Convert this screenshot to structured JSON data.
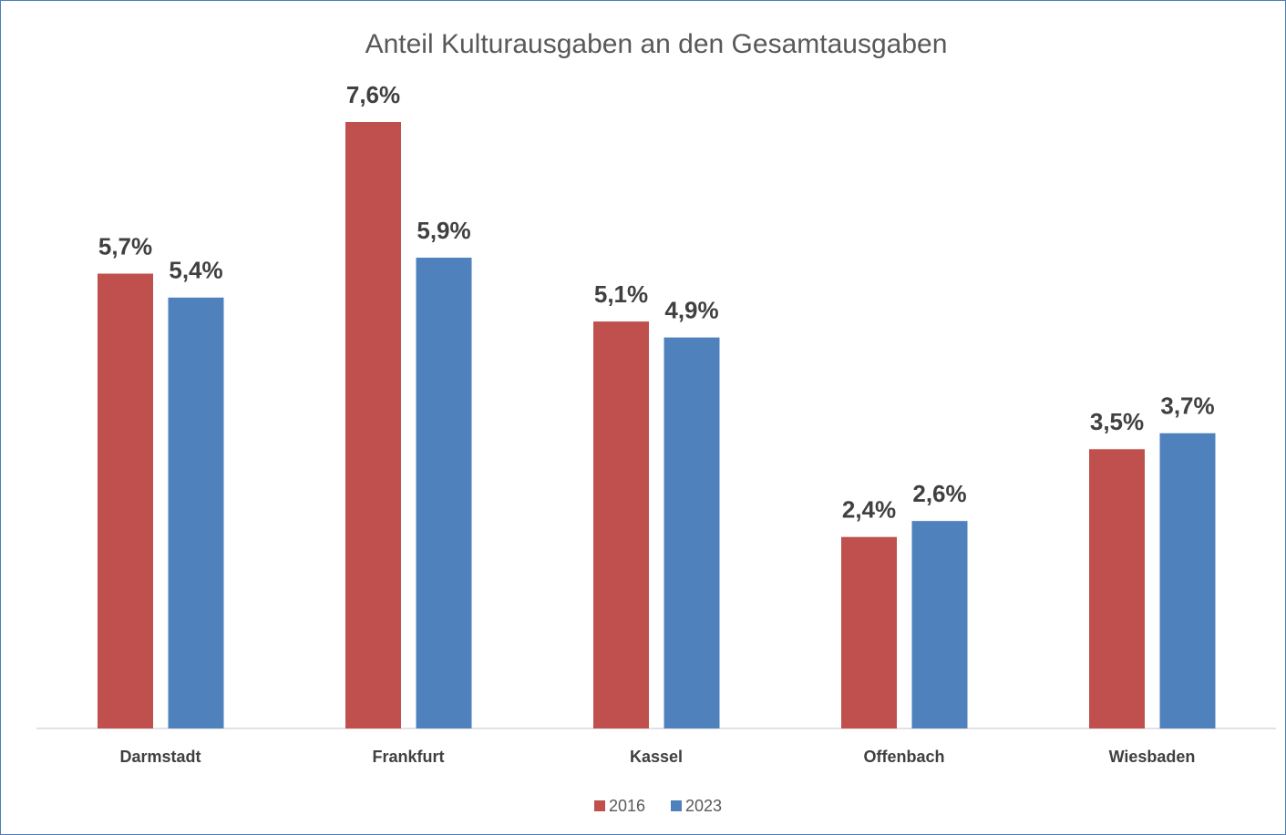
{
  "chart_data": {
    "type": "bar",
    "title": "Anteil Kulturausgaben an den Gesamtausgaben",
    "categories": [
      "Darmstadt",
      "Frankfurt",
      "Kassel",
      "Offenbach",
      "Wiesbaden"
    ],
    "series": [
      {
        "name": "2016",
        "color": "#c0504d",
        "values": [
          5.7,
          7.6,
          5.1,
          2.4,
          3.5
        ],
        "value_labels": [
          "5,7%",
          "7,6%",
          "5,1%",
          "2,4%",
          "3,5%"
        ]
      },
      {
        "name": "2023",
        "color": "#4f81bd",
        "values": [
          5.4,
          5.9,
          4.9,
          2.6,
          3.7
        ],
        "value_labels": [
          "5,4%",
          "5,9%",
          "4,9%",
          "2,6%",
          "3,7%"
        ]
      }
    ],
    "legend": "bottom"
  }
}
